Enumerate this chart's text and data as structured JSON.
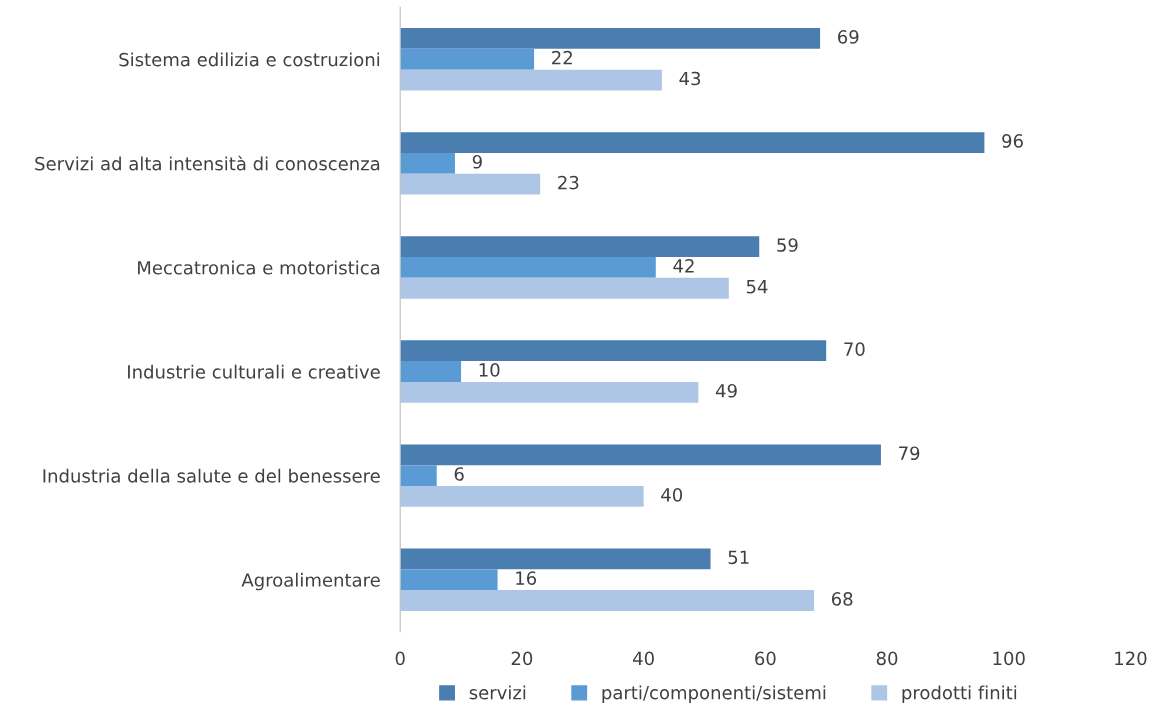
{
  "chart_data": {
    "type": "bar",
    "orientation": "horizontal",
    "categories": [
      "Sistema edilizia e costruzioni",
      "Servizi ad alta intensità di conoscenza",
      "Meccatronica e motoristica",
      "Industrie culturali e creative",
      "Industria della salute e del benessere",
      "Agroalimentare"
    ],
    "series": [
      {
        "name": "servizi",
        "color": "#4a7eb0",
        "values": [
          69,
          96,
          59,
          70,
          79,
          51
        ]
      },
      {
        "name": "parti/componenti/sistemi",
        "color": "#5b9bd5",
        "values": [
          22,
          9,
          42,
          10,
          6,
          16
        ]
      },
      {
        "name": "prodotti finiti",
        "color": "#adc6e6",
        "values": [
          43,
          23,
          54,
          49,
          40,
          68
        ]
      }
    ],
    "xlim": [
      0,
      120
    ],
    "xticks": [
      0,
      20,
      40,
      60,
      80,
      100,
      120
    ],
    "data_labels": true,
    "legend": "bottom",
    "grid": false
  }
}
